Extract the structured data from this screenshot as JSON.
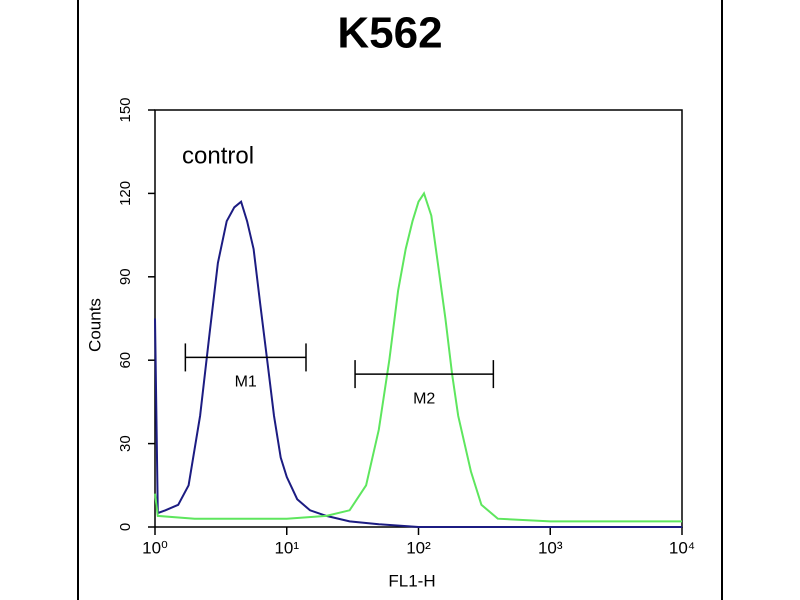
{
  "chart_data": {
    "type": "histogram-overlay",
    "title": "K562",
    "xlabel": "FL1-H",
    "ylabel": "Counts",
    "xscale": "log",
    "xlim": [
      1,
      10000
    ],
    "ylim": [
      0,
      150
    ],
    "xticks": [
      {
        "value": 1,
        "label": "10⁰"
      },
      {
        "value": 10,
        "label": "10¹"
      },
      {
        "value": 100,
        "label": "10²"
      },
      {
        "value": 1000,
        "label": "10³"
      },
      {
        "value": 10000,
        "label": "10⁴"
      }
    ],
    "yticks": [
      0,
      30,
      60,
      90,
      120,
      150
    ],
    "series": [
      {
        "name": "control",
        "color": "#1c1c82",
        "x": [
          1,
          1.05,
          1.2,
          1.5,
          1.8,
          2.2,
          2.6,
          3.0,
          3.5,
          4.0,
          4.5,
          5.0,
          5.6,
          6.3,
          7.1,
          8,
          9,
          10,
          12,
          15,
          20,
          30,
          50,
          100,
          1000,
          10000
        ],
        "values": [
          75,
          5,
          6,
          8,
          15,
          40,
          70,
          95,
          110,
          115,
          117,
          110,
          100,
          80,
          60,
          40,
          25,
          18,
          10,
          6,
          4,
          2,
          1,
          0,
          0,
          0
        ]
      },
      {
        "color": "#5ee65e",
        "x": [
          1,
          1.05,
          2,
          5,
          10,
          20,
          30,
          40,
          50,
          60,
          70,
          80,
          90,
          100,
          110,
          125,
          140,
          160,
          180,
          200,
          250,
          300,
          400,
          1000,
          10000
        ],
        "values": [
          12,
          4,
          3,
          3,
          3,
          4,
          6,
          15,
          35,
          60,
          85,
          100,
          110,
          117,
          120,
          112,
          95,
          75,
          55,
          40,
          20,
          8,
          3,
          2,
          2
        ]
      }
    ],
    "gates": [
      {
        "label": "M1",
        "x": [
          1.7,
          14
        ],
        "y": 61
      },
      {
        "label": "M2",
        "x": [
          33,
          370
        ],
        "y": 55
      }
    ]
  }
}
